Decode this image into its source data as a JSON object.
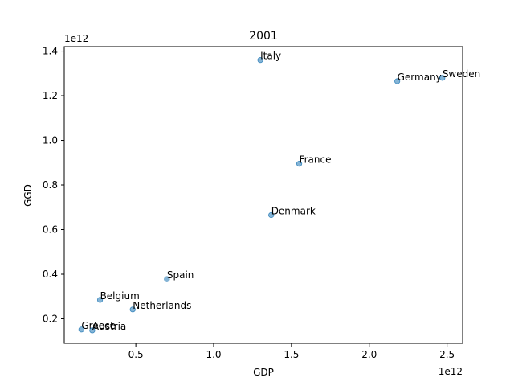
{
  "chart_data": {
    "type": "scatter",
    "title": "2001",
    "xlabel": "GDP",
    "ylabel": "GGD",
    "x_offset_label": "1e12",
    "y_offset_label": "1e12",
    "xlim": [
      0.04,
      2.6
    ],
    "ylim": [
      0.09,
      1.42
    ],
    "xticks": [
      0.5,
      1.0,
      1.5,
      2.0,
      2.5
    ],
    "xtick_labels": [
      "0.5",
      "1.0",
      "1.5",
      "2.0",
      "2.5"
    ],
    "yticks": [
      0.2,
      0.4,
      0.6,
      0.8,
      1.0,
      1.2,
      1.4
    ],
    "ytick_labels": [
      "0.2",
      "0.4",
      "0.6",
      "0.8",
      "1.0",
      "1.2",
      "1.4"
    ],
    "grid": false,
    "marker_color": "#1f77b4",
    "points": [
      {
        "label": "Italy",
        "x": 1.3,
        "y": 1.36
      },
      {
        "label": "Germany",
        "x": 2.18,
        "y": 1.265
      },
      {
        "label": "Sweden",
        "x": 2.47,
        "y": 1.28
      },
      {
        "label": "France",
        "x": 1.55,
        "y": 0.895
      },
      {
        "label": "Denmark",
        "x": 1.37,
        "y": 0.665
      },
      {
        "label": "Spain",
        "x": 0.7,
        "y": 0.378
      },
      {
        "label": "Belgium",
        "x": 0.27,
        "y": 0.285
      },
      {
        "label": "Netherlands",
        "x": 0.48,
        "y": 0.242
      },
      {
        "label": "Greece",
        "x": 0.15,
        "y": 0.152
      },
      {
        "label": "Austria",
        "x": 0.22,
        "y": 0.148
      }
    ]
  }
}
